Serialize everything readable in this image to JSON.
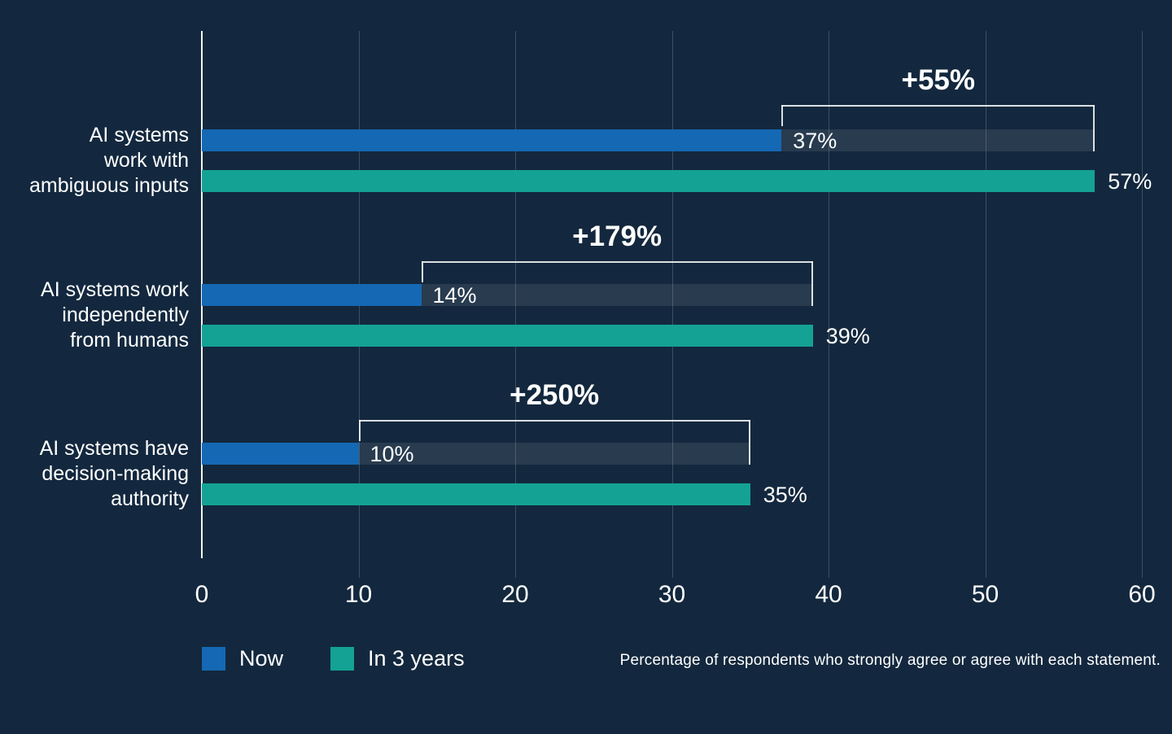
{
  "chart_data": {
    "type": "bar",
    "orientation": "horizontal",
    "title": "",
    "xlabel": "",
    "ylabel": "",
    "xlim": [
      0,
      60
    ],
    "x_ticks": [
      0,
      10,
      20,
      30,
      40,
      50,
      60
    ],
    "grid": true,
    "legend_position": "bottom-left",
    "value_unit": "%",
    "categories": [
      "AI systems work with ambiguous inputs",
      "AI systems work independently from humans",
      "AI systems have decision-making authority"
    ],
    "series": [
      {
        "name": "Now",
        "values": [
          37,
          14,
          10
        ],
        "color": "#1568B3"
      },
      {
        "name": "In 3 years",
        "values": [
          57,
          39,
          35
        ],
        "color": "#14A294"
      }
    ],
    "rows": [
      {
        "label_lines": [
          "AI systems",
          "work with",
          "ambiguous inputs"
        ],
        "now": 37,
        "future": 57,
        "now_label": "37%",
        "future_label": "57%",
        "growth_label": "+55%"
      },
      {
        "label_lines": [
          "AI systems work",
          "independently",
          "from humans"
        ],
        "now": 14,
        "future": 39,
        "now_label": "14%",
        "future_label": "39%",
        "growth_label": "+179%"
      },
      {
        "label_lines": [
          "AI systems have",
          "decision-making",
          "authority"
        ],
        "now": 10,
        "future": 35,
        "now_label": "10%",
        "future_label": "35%",
        "growth_label": "+250%"
      }
    ],
    "caption": "Percentage of respondents who strongly agree or agree with each statement.",
    "colors": {
      "background": "#13283E",
      "now": "#1568B3",
      "in3years": "#14A294",
      "gridline": "#FFFFFF2E",
      "axis": "#FFFFFFF2",
      "growth_strip": "#FFFFFF17",
      "bracket": "#FFFFFFD9",
      "text": "#FFFFFF"
    }
  }
}
